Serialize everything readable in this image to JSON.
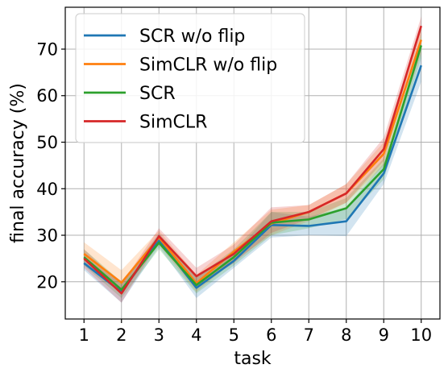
{
  "chart_data": {
    "type": "line",
    "title": "",
    "xlabel": "task",
    "ylabel": "final accuracy (%)",
    "x": [
      1,
      2,
      3,
      4,
      5,
      6,
      7,
      8,
      9,
      10
    ],
    "xticks": [
      "1",
      "2",
      "3",
      "4",
      "5",
      "6",
      "7",
      "8",
      "9",
      "10"
    ],
    "yticks": [
      20,
      30,
      40,
      50,
      60,
      70
    ],
    "xlim": [
      0.5,
      10.5
    ],
    "ylim": [
      12,
      79
    ],
    "grid": true,
    "legend": "top-left",
    "series": [
      {
        "name": "SCR w/o flip",
        "color": "#1f77b4",
        "values": [
          24.0,
          17.8,
          29.0,
          18.7,
          24.5,
          32.2,
          32.0,
          33.0,
          43.3,
          66.5
        ],
        "lower": [
          22.5,
          15.5,
          27.5,
          16.5,
          23.0,
          29.5,
          30.0,
          29.8,
          41.0,
          63.0
        ],
        "upper": [
          25.5,
          19.5,
          30.5,
          21.0,
          26.0,
          35.0,
          34.0,
          36.0,
          45.5,
          70.0
        ]
      },
      {
        "name": "SimCLR w/o flip",
        "color": "#ff7f0e",
        "values": [
          26.0,
          19.8,
          29.5,
          19.7,
          26.5,
          32.5,
          35.0,
          39.0,
          47.5,
          72.0
        ],
        "lower": [
          24.5,
          17.5,
          28.0,
          17.8,
          24.5,
          30.0,
          33.0,
          37.0,
          45.0,
          69.0
        ],
        "upper": [
          28.5,
          22.5,
          31.0,
          21.5,
          28.5,
          35.5,
          36.5,
          41.0,
          50.0,
          75.0
        ]
      },
      {
        "name": "SCR",
        "color": "#2ca02c",
        "values": [
          25.3,
          18.3,
          28.4,
          19.3,
          25.3,
          32.7,
          33.4,
          35.8,
          44.2,
          70.8
        ],
        "lower": [
          23.5,
          16.5,
          27.0,
          17.5,
          23.5,
          30.0,
          31.5,
          33.5,
          42.0,
          68.0
        ],
        "upper": [
          27.0,
          20.0,
          30.0,
          21.0,
          27.0,
          35.0,
          35.0,
          38.0,
          46.5,
          73.0
        ]
      },
      {
        "name": "SimCLR",
        "color": "#d62728",
        "values": [
          25.0,
          17.5,
          29.8,
          21.2,
          26.0,
          33.0,
          35.0,
          39.0,
          48.5,
          75.0
        ],
        "lower": [
          23.0,
          15.5,
          28.5,
          19.0,
          24.0,
          30.5,
          33.5,
          37.0,
          46.0,
          73.0
        ],
        "upper": [
          27.0,
          19.5,
          31.5,
          23.0,
          28.0,
          36.0,
          36.5,
          41.0,
          51.0,
          77.0
        ]
      }
    ]
  }
}
